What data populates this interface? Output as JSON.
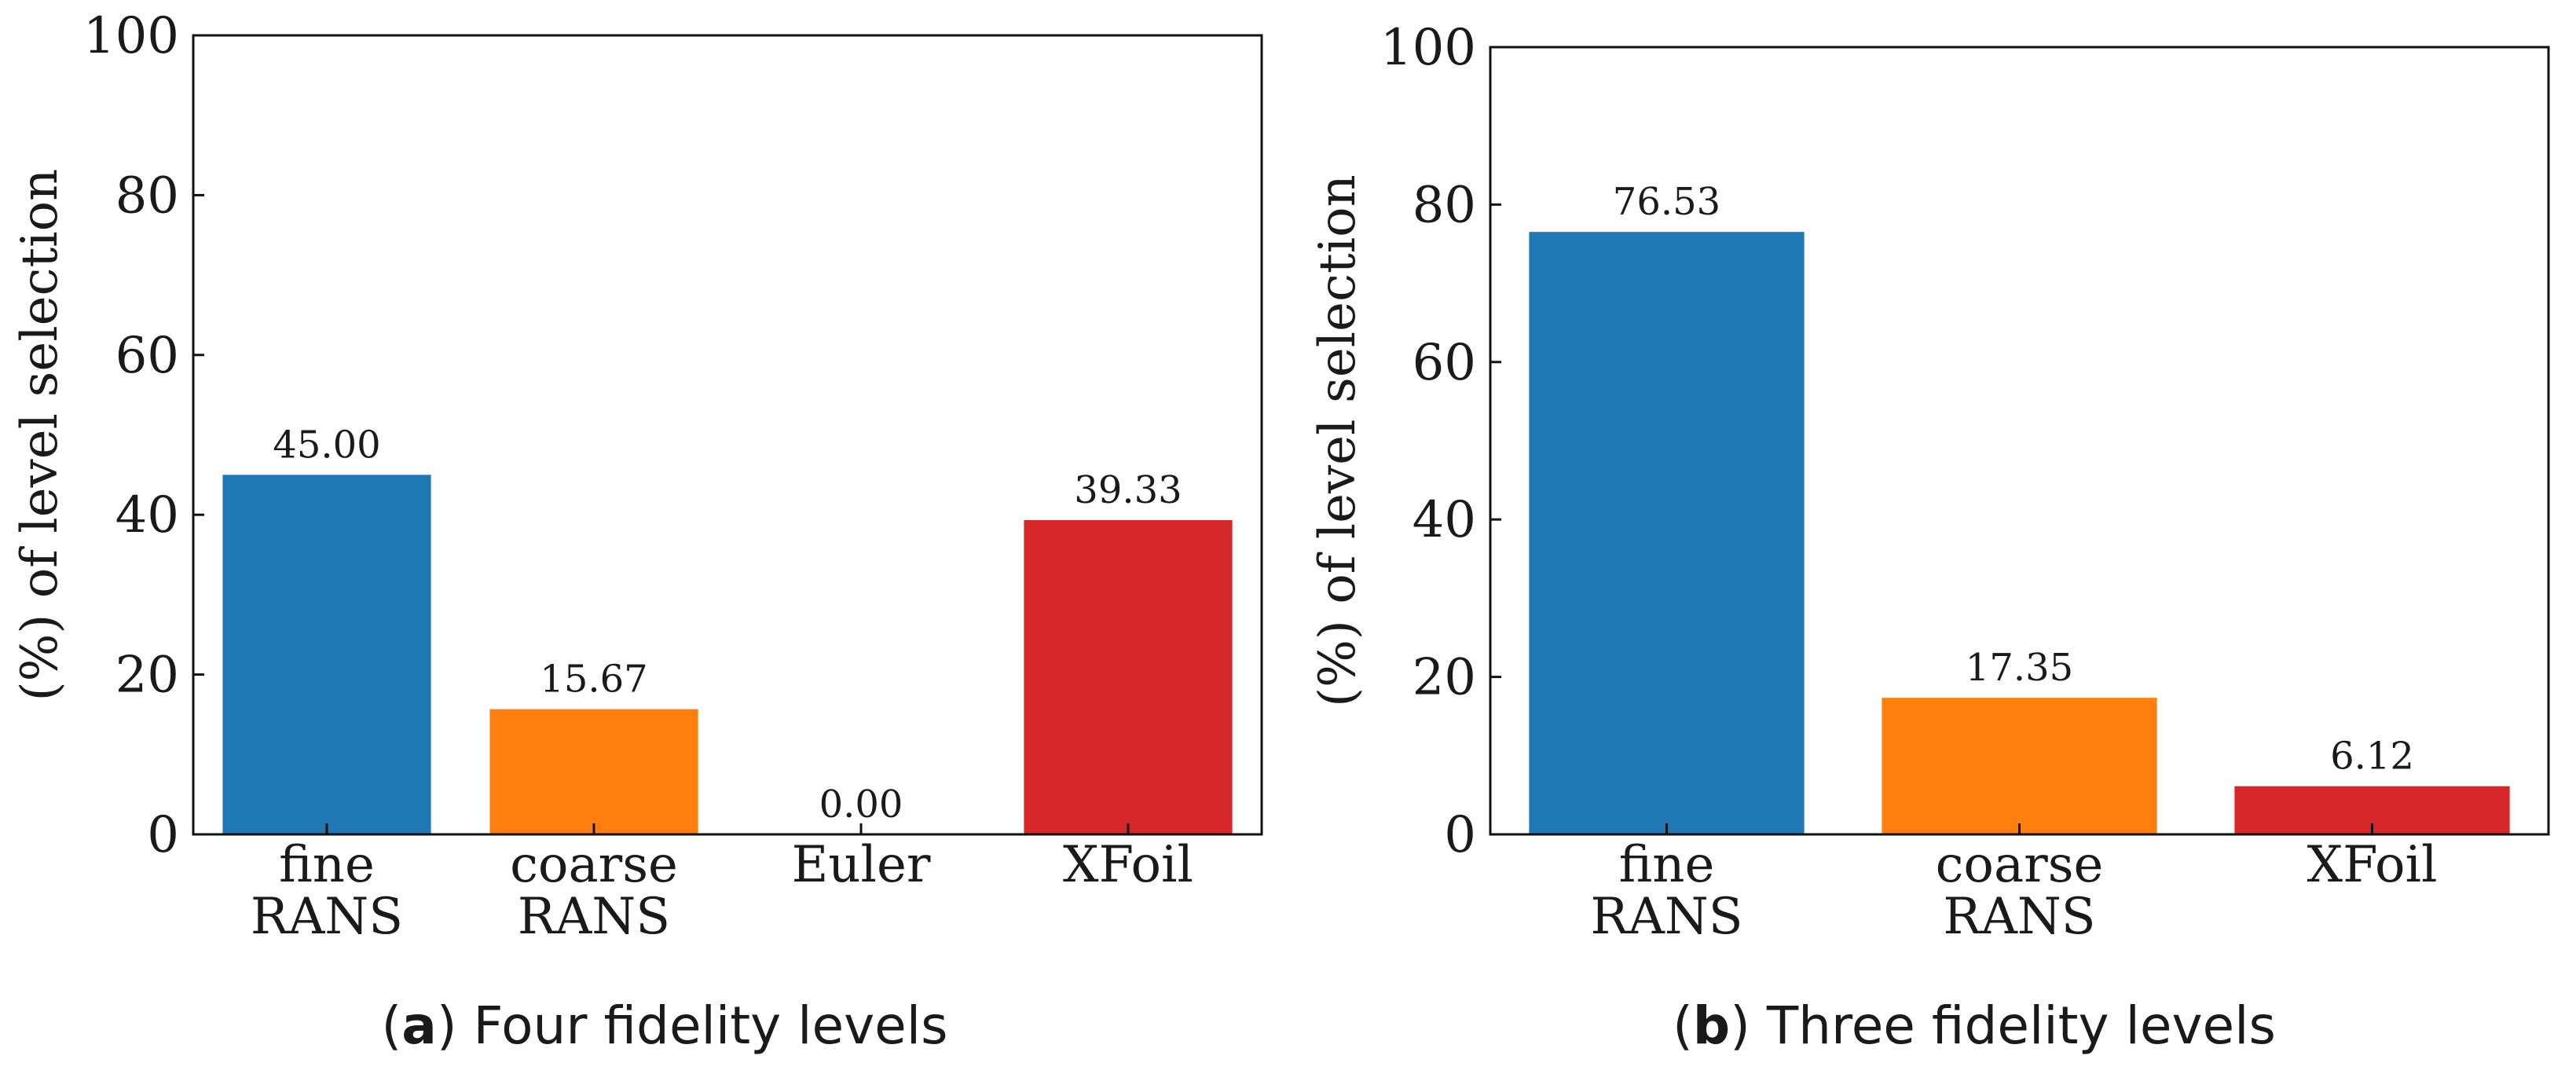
{
  "chart_data": [
    {
      "type": "bar",
      "categories": [
        [
          "fine",
          "RANS"
        ],
        [
          "coarse",
          "RANS"
        ],
        [
          "Euler"
        ],
        [
          "XFoil"
        ]
      ],
      "values": [
        45.0,
        15.67,
        0.0,
        39.33
      ],
      "value_labels": [
        "45.00",
        "15.67",
        "0.00",
        "39.33"
      ],
      "colors": [
        "#1f77b4",
        "#ff7f0e",
        "#2ca02c",
        "#d62728"
      ],
      "ylabel": "(%) of level selection",
      "ylim": [
        0,
        100
      ],
      "yticks": [
        0,
        20,
        40,
        60,
        80,
        100
      ],
      "grid": false,
      "caption_letter": "a",
      "caption_text": "Four fidelity levels"
    },
    {
      "type": "bar",
      "categories": [
        [
          "fine",
          "RANS"
        ],
        [
          "coarse",
          "RANS"
        ],
        [
          "XFoil"
        ]
      ],
      "values": [
        76.53,
        17.35,
        6.12
      ],
      "value_labels": [
        "76.53",
        "17.35",
        "6.12"
      ],
      "colors": [
        "#1f77b4",
        "#ff7f0e",
        "#d62728"
      ],
      "ylabel": "(%) of level selection",
      "ylim": [
        0,
        100
      ],
      "yticks": [
        0,
        20,
        40,
        60,
        80,
        100
      ],
      "grid": false,
      "caption_letter": "b",
      "caption_text": "Three fidelity levels"
    }
  ]
}
